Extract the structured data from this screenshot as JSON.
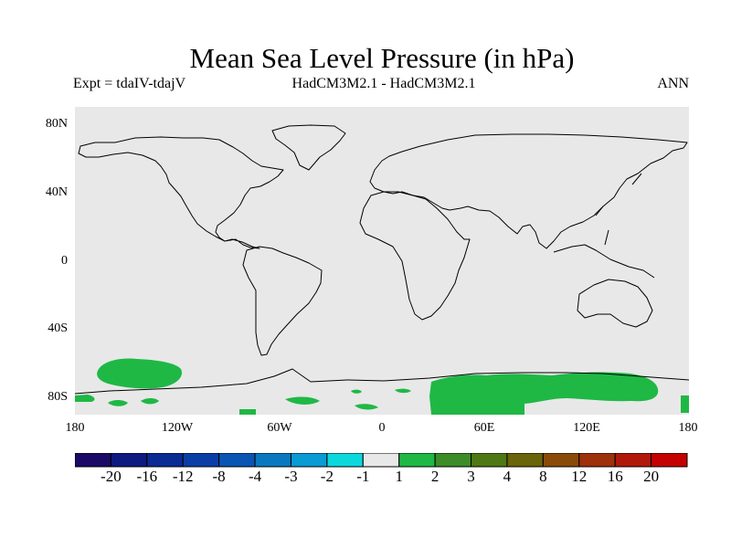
{
  "title": "Mean Sea Level Pressure (in hPa)",
  "subtitle_left": "Expt = tdaIV-tdajV",
  "subtitle_center": "HadCM3M2.1 - HadCM3M2.1",
  "subtitle_right": "ANN",
  "lat_labels": [
    "80N",
    "40N",
    "0",
    "40S",
    "80S"
  ],
  "lon_labels": [
    "180",
    "120W",
    "60W",
    "0",
    "60E",
    "120E",
    "180"
  ],
  "colorbar": {
    "labels": [
      "-20",
      "-16",
      "-12",
      "-8",
      "-4",
      "-3",
      "-2",
      "-1",
      "1",
      "2",
      "3",
      "4",
      "8",
      "12",
      "16",
      "20"
    ],
    "colors": [
      "#1a0a66",
      "#0d1a80",
      "#0a2a94",
      "#0a3ea6",
      "#0a55b4",
      "#0a78c0",
      "#0a9ad4",
      "#0ad8dc",
      "#e8e8e8",
      "#1fb845",
      "#3c8c28",
      "#4e7814",
      "#6a640a",
      "#8a4a0a",
      "#9e300a",
      "#b0180a",
      "#c40000"
    ]
  },
  "colors": {
    "ocean_background": "#e8e8e8",
    "positive_anomaly": "#1fb845",
    "coastline": "#000000"
  }
}
